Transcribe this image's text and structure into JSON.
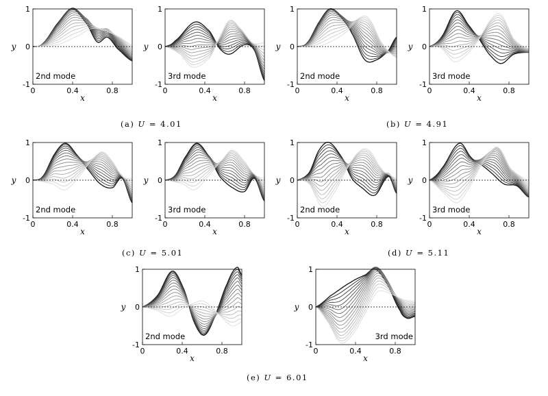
{
  "groups": [
    {
      "caption_letter": "(a)",
      "caption_var": "U",
      "caption_value": "4.01"
    },
    {
      "caption_letter": "(b)",
      "caption_var": "U",
      "caption_value": "4.91"
    },
    {
      "caption_letter": "(c)",
      "caption_var": "U",
      "caption_value": "5.01"
    },
    {
      "caption_letter": "(d)",
      "caption_var": "U",
      "caption_value": "5.11"
    },
    {
      "caption_letter": "(e)",
      "caption_var": "U",
      "caption_value": "6.01"
    }
  ],
  "chart_data": [
    {
      "type": "line",
      "group": "a",
      "label": "2nd mode",
      "label_pos": "bottom-left",
      "xlabel": "x",
      "ylabel": "y",
      "xlim": [
        0,
        1
      ],
      "ylim": [
        -1,
        1
      ],
      "x_ticks": [
        "0",
        "0.4",
        "0.8"
      ],
      "y_ticks": [
        "1",
        "0",
        "-1"
      ],
      "snapshots": 16,
      "envelope_peaks": [
        [
          0,
          0
        ],
        [
          0.08,
          0.05
        ],
        [
          0.4,
          1.0
        ],
        [
          0.68,
          0.55
        ],
        [
          0.75,
          0.35
        ],
        [
          1.0,
          -0.38
        ]
      ],
      "shape_primary": [
        [
          0,
          0
        ],
        [
          0.1,
          0.08
        ],
        [
          0.25,
          0.62
        ],
        [
          0.4,
          1.0
        ],
        [
          0.55,
          0.58
        ],
        [
          0.65,
          0.12
        ],
        [
          0.75,
          0.25
        ],
        [
          0.85,
          -0.05
        ],
        [
          1.0,
          -0.38
        ]
      ],
      "shape_secondary": [
        [
          0,
          0
        ],
        [
          0.25,
          0.05
        ],
        [
          0.45,
          0.28
        ],
        [
          0.6,
          0.48
        ],
        [
          0.72,
          0.42
        ],
        [
          0.85,
          0.28
        ],
        [
          1.0,
          0.05
        ]
      ],
      "zero_line": true
    },
    {
      "type": "line",
      "group": "a",
      "label": "3rd mode",
      "label_pos": "bottom-left",
      "xlabel": "x",
      "ylabel": "y",
      "xlim": [
        0,
        1
      ],
      "ylim": [
        -1,
        1
      ],
      "x_ticks": [
        "0",
        "0.4",
        "0.8"
      ],
      "y_ticks": [
        "1",
        "0",
        "-1"
      ],
      "snapshots": 16,
      "shape_primary": [
        [
          0,
          0
        ],
        [
          0.1,
          0.15
        ],
        [
          0.3,
          0.65
        ],
        [
          0.45,
          0.4
        ],
        [
          0.55,
          -0.05
        ],
        [
          0.65,
          -0.2
        ],
        [
          0.8,
          0.05
        ],
        [
          0.9,
          -0.1
        ],
        [
          1.0,
          -0.9
        ]
      ],
      "shape_secondary": [
        [
          0,
          0
        ],
        [
          0.15,
          -0.2
        ],
        [
          0.28,
          -0.55
        ],
        [
          0.45,
          -0.3
        ],
        [
          0.55,
          0.25
        ],
        [
          0.65,
          0.7
        ],
        [
          0.75,
          0.5
        ],
        [
          0.88,
          0.1
        ],
        [
          1.0,
          0.1
        ]
      ],
      "zero_line": true
    },
    {
      "type": "line",
      "group": "b",
      "label": "2nd mode",
      "label_pos": "bottom-left",
      "xlabel": "x",
      "ylabel": "y",
      "xlim": [
        0,
        1
      ],
      "ylim": [
        -1,
        1
      ],
      "x_ticks": [
        "0",
        "0.4",
        "0.8"
      ],
      "y_ticks": [
        "1",
        "0",
        "-1"
      ],
      "snapshots": 16,
      "shape_primary": [
        [
          0,
          0
        ],
        [
          0.1,
          0.1
        ],
        [
          0.22,
          0.65
        ],
        [
          0.33,
          1.0
        ],
        [
          0.45,
          0.75
        ],
        [
          0.55,
          0.35
        ],
        [
          0.68,
          -0.35
        ],
        [
          0.8,
          -0.35
        ],
        [
          0.92,
          -0.1
        ],
        [
          1.0,
          0.25
        ]
      ],
      "shape_secondary": [
        [
          0,
          0
        ],
        [
          0.2,
          0.0
        ],
        [
          0.35,
          0.15
        ],
        [
          0.5,
          0.4
        ],
        [
          0.62,
          0.75
        ],
        [
          0.72,
          0.75
        ],
        [
          0.85,
          0.1
        ],
        [
          1.0,
          -0.3
        ]
      ],
      "zero_line": true
    },
    {
      "type": "line",
      "group": "b",
      "label": "3rd mode",
      "label_pos": "bottom-left",
      "xlabel": "x",
      "ylabel": "y",
      "xlim": [
        0,
        1
      ],
      "ylim": [
        -1,
        1
      ],
      "x_ticks": [
        "0",
        "0.4",
        "0.8"
      ],
      "y_ticks": [
        "1",
        "0",
        "-1"
      ],
      "snapshots": 16,
      "shape_primary": [
        [
          0,
          0
        ],
        [
          0.12,
          0.25
        ],
        [
          0.27,
          0.95
        ],
        [
          0.4,
          0.55
        ],
        [
          0.5,
          0.2
        ],
        [
          0.6,
          -0.2
        ],
        [
          0.72,
          -0.45
        ],
        [
          0.85,
          -0.2
        ],
        [
          1.0,
          -0.15
        ]
      ],
      "shape_secondary": [
        [
          0,
          0
        ],
        [
          0.12,
          -0.05
        ],
        [
          0.25,
          -0.4
        ],
        [
          0.38,
          -0.2
        ],
        [
          0.5,
          0.2
        ],
        [
          0.62,
          0.72
        ],
        [
          0.72,
          0.85
        ],
        [
          0.85,
          0.2
        ],
        [
          1.0,
          -0.05
        ]
      ],
      "zero_line": true
    },
    {
      "type": "line",
      "group": "c",
      "label": "2nd mode",
      "label_pos": "bottom-left",
      "xlabel": "x",
      "ylabel": "y",
      "xlim": [
        0,
        1
      ],
      "ylim": [
        -1,
        1
      ],
      "x_ticks": [
        "0",
        "0.4",
        "0.8"
      ],
      "y_ticks": [
        "1",
        "0",
        "-1"
      ],
      "snapshots": 16,
      "shape_primary": [
        [
          0,
          0
        ],
        [
          0.1,
          0.1
        ],
        [
          0.22,
          0.7
        ],
        [
          0.33,
          0.98
        ],
        [
          0.45,
          0.65
        ],
        [
          0.55,
          0.3
        ],
        [
          0.68,
          -0.1
        ],
        [
          0.8,
          -0.2
        ],
        [
          0.9,
          0.05
        ],
        [
          1.0,
          -0.6
        ]
      ],
      "shape_secondary": [
        [
          0,
          0
        ],
        [
          0.2,
          -0.1
        ],
        [
          0.33,
          -0.25
        ],
        [
          0.5,
          0.2
        ],
        [
          0.6,
          0.55
        ],
        [
          0.7,
          0.75
        ],
        [
          0.8,
          0.5
        ],
        [
          0.9,
          0.1
        ],
        [
          1.0,
          0.05
        ]
      ],
      "zero_line": true
    },
    {
      "type": "line",
      "group": "c",
      "label": "3rd mode",
      "label_pos": "bottom-left",
      "xlabel": "x",
      "ylabel": "y",
      "xlim": [
        0,
        1
      ],
      "ylim": [
        -1,
        1
      ],
      "x_ticks": [
        "0",
        "0.4",
        "0.8"
      ],
      "y_ticks": [
        "1",
        "0",
        "-1"
      ],
      "snapshots": 16,
      "shape_primary": [
        [
          0,
          0
        ],
        [
          0.1,
          0.12
        ],
        [
          0.2,
          0.6
        ],
        [
          0.32,
          0.98
        ],
        [
          0.45,
          0.6
        ],
        [
          0.55,
          0.1
        ],
        [
          0.68,
          -0.2
        ],
        [
          0.8,
          -0.3
        ],
        [
          0.9,
          0.05
        ],
        [
          1.0,
          -0.55
        ]
      ],
      "shape_secondary": [
        [
          0,
          0
        ],
        [
          0.18,
          -0.1
        ],
        [
          0.3,
          -0.25
        ],
        [
          0.45,
          0.15
        ],
        [
          0.58,
          0.55
        ],
        [
          0.68,
          0.8
        ],
        [
          0.8,
          0.5
        ],
        [
          0.9,
          0.15
        ],
        [
          1.0,
          0.05
        ]
      ],
      "zero_line": true
    },
    {
      "type": "line",
      "group": "d",
      "label": "2nd mode",
      "label_pos": "bottom-left",
      "xlabel": "x",
      "ylabel": "y",
      "xlim": [
        0,
        1
      ],
      "ylim": [
        -1,
        1
      ],
      "x_ticks": [
        "0",
        "0.4",
        "0.8"
      ],
      "y_ticks": [
        "1",
        "0",
        "-1"
      ],
      "snapshots": 16,
      "shape_primary": [
        [
          0,
          0
        ],
        [
          0.12,
          0.2
        ],
        [
          0.22,
          0.8
        ],
        [
          0.32,
          1.0
        ],
        [
          0.45,
          0.6
        ],
        [
          0.55,
          0.05
        ],
        [
          0.65,
          -0.2
        ],
        [
          0.78,
          -0.4
        ],
        [
          0.92,
          0.1
        ],
        [
          1.0,
          -0.35
        ]
      ],
      "shape_secondary": [
        [
          0,
          0
        ],
        [
          0.12,
          -0.1
        ],
        [
          0.25,
          -0.7
        ],
        [
          0.38,
          -0.3
        ],
        [
          0.5,
          0.3
        ],
        [
          0.62,
          0.75
        ],
        [
          0.72,
          0.8
        ],
        [
          0.85,
          0.3
        ],
        [
          0.92,
          0.15
        ],
        [
          1.0,
          0.05
        ]
      ],
      "zero_line": true
    },
    {
      "type": "line",
      "group": "d",
      "label": "3rd mode",
      "label_pos": "bottom-left",
      "xlabel": "x",
      "ylabel": "y",
      "xlim": [
        0,
        1
      ],
      "ylim": [
        -1,
        1
      ],
      "x_ticks": [
        "0",
        "0.4",
        "0.8"
      ],
      "y_ticks": [
        "1",
        "0",
        "-1"
      ],
      "snapshots": 16,
      "shape_primary": [
        [
          0,
          0
        ],
        [
          0.12,
          0.3
        ],
        [
          0.3,
          0.98
        ],
        [
          0.42,
          0.6
        ],
        [
          0.5,
          0.45
        ],
        [
          0.62,
          0.2
        ],
        [
          0.75,
          -0.1
        ],
        [
          0.88,
          -0.15
        ],
        [
          1.0,
          -0.45
        ]
      ],
      "shape_secondary": [
        [
          0,
          0
        ],
        [
          0.15,
          -0.35
        ],
        [
          0.28,
          -0.6
        ],
        [
          0.4,
          -0.2
        ],
        [
          0.5,
          0.3
        ],
        [
          0.62,
          0.75
        ],
        [
          0.7,
          0.85
        ],
        [
          0.82,
          0.3
        ],
        [
          1.0,
          0.0
        ]
      ],
      "zero_line": true
    },
    {
      "type": "line",
      "group": "e",
      "label": "2nd mode",
      "label_pos": "bottom-left",
      "xlabel": "x",
      "ylabel": "y",
      "xlim": [
        0,
        1
      ],
      "ylim": [
        -1,
        1
      ],
      "x_ticks": [
        "0",
        "0.4",
        "0.8"
      ],
      "y_ticks": [
        "1",
        "0",
        "-1"
      ],
      "snapshots": 16,
      "shape_primary": [
        [
          0,
          0
        ],
        [
          0.15,
          0.3
        ],
        [
          0.3,
          0.95
        ],
        [
          0.42,
          0.45
        ],
        [
          0.52,
          -0.4
        ],
        [
          0.62,
          -0.75
        ],
        [
          0.72,
          -0.3
        ],
        [
          0.85,
          0.6
        ],
        [
          0.95,
          1.05
        ],
        [
          1.0,
          0.85
        ]
      ],
      "shape_secondary": [
        [
          0,
          0
        ],
        [
          0.15,
          -0.1
        ],
        [
          0.28,
          -0.25
        ],
        [
          0.4,
          -0.05
        ],
        [
          0.52,
          0.1
        ],
        [
          0.62,
          0.15
        ],
        [
          0.75,
          -0.15
        ],
        [
          0.9,
          -0.5
        ],
        [
          1.0,
          -0.4
        ]
      ],
      "zero_line": true
    },
    {
      "type": "line",
      "group": "e",
      "label": "3rd mode",
      "label_pos": "bottom-right",
      "xlabel": "x",
      "ylabel": "y",
      "xlim": [
        0,
        1
      ],
      "ylim": [
        -1,
        1
      ],
      "x_ticks": [
        "0",
        "0.4",
        "0.8"
      ],
      "y_ticks": [
        "1",
        "0",
        "-1"
      ],
      "snapshots": 16,
      "shape_primary": [
        [
          0,
          0
        ],
        [
          0.15,
          0.3
        ],
        [
          0.35,
          0.65
        ],
        [
          0.5,
          0.85
        ],
        [
          0.6,
          1.0
        ],
        [
          0.72,
          0.6
        ],
        [
          0.85,
          -0.1
        ],
        [
          0.92,
          -0.3
        ],
        [
          1.0,
          -0.25
        ]
      ],
      "shape_secondary": [
        [
          0,
          0
        ],
        [
          0.12,
          -0.4
        ],
        [
          0.25,
          -0.95
        ],
        [
          0.38,
          -0.7
        ],
        [
          0.5,
          -0.15
        ],
        [
          0.62,
          0.4
        ],
        [
          0.75,
          0.35
        ],
        [
          0.88,
          0.2
        ],
        [
          1.0,
          0.15
        ]
      ],
      "zero_line": true
    }
  ]
}
